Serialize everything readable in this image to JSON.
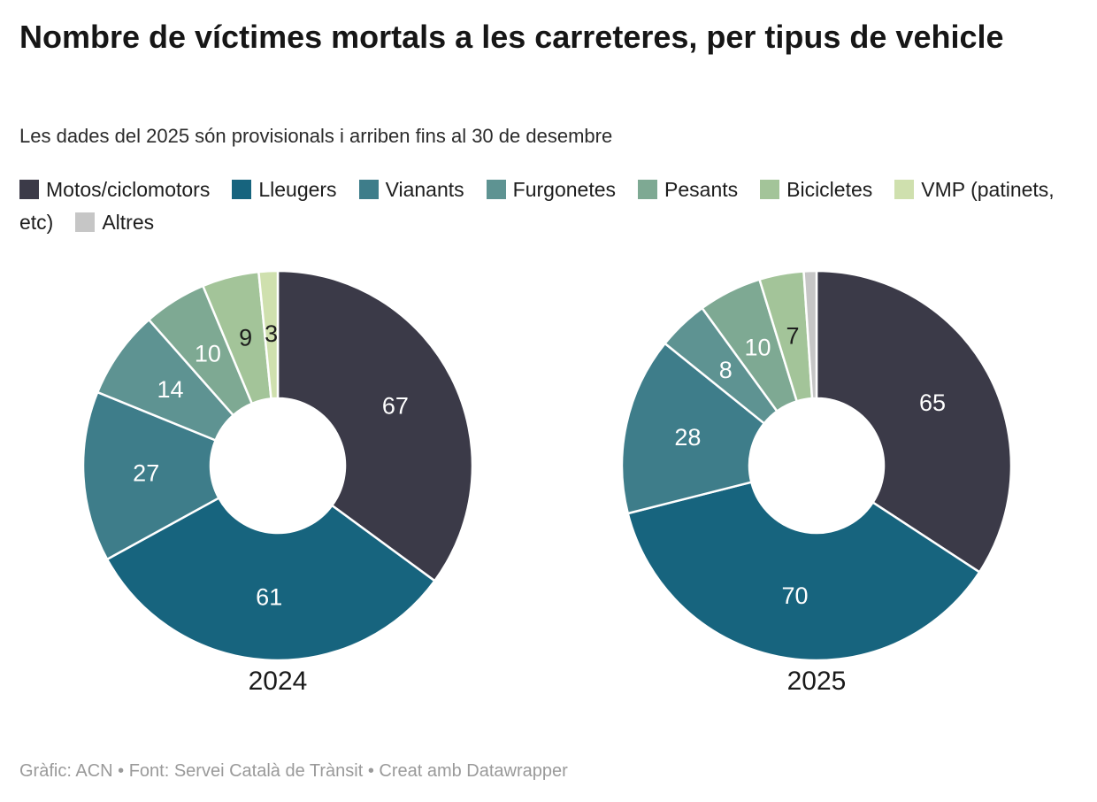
{
  "header": {
    "title": "Nombre de víctimes mortals a les carreteres, per tipus de vehicle",
    "subtitle": "Les dades del 2025 són provisionals i arriben fins al 30 de desembre"
  },
  "legend": {
    "items": [
      {
        "label": "Motos/ciclomotors",
        "color": "#3B3A48"
      },
      {
        "label": "Lleugers",
        "color": "#17647E"
      },
      {
        "label": "Vianants",
        "color": "#3E7D8A"
      },
      {
        "label": "Furgonetes",
        "color": "#5E9392"
      },
      {
        "label": "Pesants",
        "color": "#7EA993"
      },
      {
        "label": "Bicicletes",
        "color": "#A3C499"
      },
      {
        "label": "VMP (patinets, etc)",
        "color": "#CFE0AE"
      },
      {
        "label": "Altres",
        "color": "#C6C6C6"
      }
    ]
  },
  "chart_data": {
    "type": "pie",
    "subtype": "donut",
    "legend_position": "top",
    "categories": [
      "Motos/ciclomotors",
      "Lleugers",
      "Vianants",
      "Furgonetes",
      "Pesants",
      "Bicicletes",
      "VMP (patinets, etc)",
      "Altres"
    ],
    "colors": [
      "#3B3A48",
      "#17647E",
      "#3E7D8A",
      "#5E9392",
      "#7EA993",
      "#A3C499",
      "#CFE0AE",
      "#C6C6C6"
    ],
    "value_label_colors": [
      "#FFFFFF",
      "#FFFFFF",
      "#FFFFFF",
      "#FFFFFF",
      "#FFFFFF",
      "#1D1D1D",
      "#1D1D1D",
      "#1D1D1D"
    ],
    "charts": [
      {
        "label": "2024",
        "values": [
          67,
          61,
          27,
          14,
          10,
          9,
          3,
          0
        ],
        "value_labels": [
          "67",
          "61",
          "27",
          "14",
          "10",
          "9",
          "3",
          ""
        ]
      },
      {
        "label": "2025",
        "values": [
          65,
          70,
          28,
          8,
          10,
          7,
          0,
          2
        ],
        "value_labels": [
          "65",
          "70",
          "28",
          "8",
          "10",
          "7",
          "",
          ""
        ]
      }
    ]
  },
  "footer": {
    "credit": "Gràfic: ACN • Font: Servei Català de Trànsit • Creat amb Datawrapper"
  }
}
